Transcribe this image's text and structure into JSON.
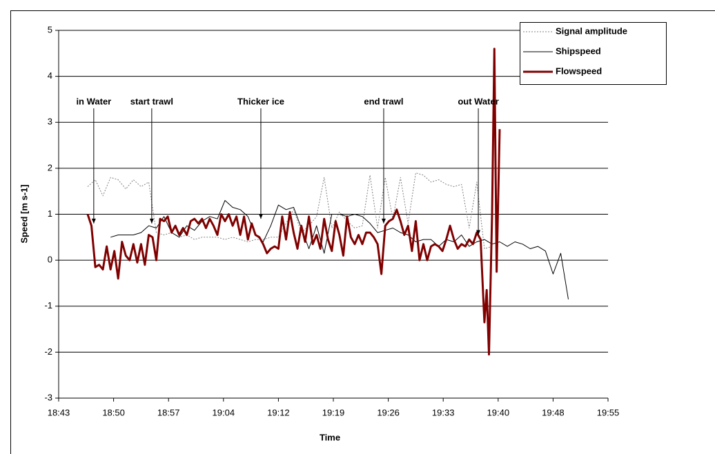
{
  "chart_data": {
    "type": "line",
    "xlabel": "Time",
    "ylabel": "Speed [m s-1]",
    "xlim": [
      1123.2,
      1195.2
    ],
    "xticks": [
      {
        "value": 1123.2,
        "label": "18:43"
      },
      {
        "value": 1130.4,
        "label": "18:50"
      },
      {
        "value": 1137.6,
        "label": "18:57"
      },
      {
        "value": 1144.8,
        "label": "19:04"
      },
      {
        "value": 1152,
        "label": "19:12"
      },
      {
        "value": 1159.2,
        "label": "19:19"
      },
      {
        "value": 1166.4,
        "label": "19:26"
      },
      {
        "value": 1173.6,
        "label": "19:33"
      },
      {
        "value": 1180.8,
        "label": "19:40"
      },
      {
        "value": 1188,
        "label": "19:48"
      },
      {
        "value": 1195.2,
        "label": "19:55"
      }
    ],
    "ylim": [
      -3,
      5
    ],
    "yticks": [
      -3,
      -2,
      -1,
      0,
      1,
      2,
      3,
      4,
      5
    ],
    "grid": true,
    "legend": "top-right",
    "series": [
      {
        "name": "Signal amplitude",
        "color": "#808080",
        "style": "dotted",
        "x": [
          1127,
          1128,
          1129,
          1130,
          1131,
          1132,
          1133,
          1134,
          1135,
          1136,
          1137,
          1138,
          1139,
          1140,
          1141,
          1142,
          1143,
          1144,
          1145,
          1146,
          1147,
          1148,
          1149,
          1150,
          1151,
          1152,
          1153,
          1154,
          1155,
          1156,
          1157,
          1158,
          1159,
          1160,
          1161,
          1162,
          1163,
          1164,
          1165,
          1166,
          1167,
          1168,
          1169,
          1170,
          1171,
          1172,
          1173,
          1174,
          1175,
          1176,
          1177,
          1178,
          1179,
          1180
        ],
        "values": [
          1.6,
          1.75,
          1.4,
          1.8,
          1.75,
          1.55,
          1.75,
          1.6,
          1.7,
          0.6,
          0.55,
          0.6,
          0.5,
          0.55,
          0.45,
          0.5,
          0.5,
          0.5,
          0.45,
          0.5,
          0.45,
          0.4,
          0.45,
          0.45,
          0.5,
          0.5,
          0.8,
          1.1,
          0.6,
          0.75,
          0.95,
          1.8,
          0.7,
          1.05,
          0.85,
          0.7,
          0.75,
          1.85,
          0.7,
          1.8,
          0.9,
          1.8,
          0.8,
          1.9,
          1.85,
          1.7,
          1.75,
          1.65,
          1.6,
          1.65,
          0.7,
          1.7,
          0.25,
          0.3
        ]
      },
      {
        "name": "Shipspeed",
        "color": "#000000",
        "style": "solid",
        "x": [
          1130,
          1131,
          1132,
          1133,
          1134,
          1135,
          1136,
          1137,
          1138,
          1139,
          1140,
          1141,
          1142,
          1143,
          1144,
          1145,
          1146,
          1147,
          1148,
          1149,
          1150,
          1151,
          1152,
          1153,
          1154,
          1155,
          1156,
          1157,
          1158,
          1159,
          1160,
          1161,
          1162,
          1163,
          1164,
          1165,
          1166,
          1167,
          1168,
          1169,
          1170,
          1171,
          1172,
          1173,
          1174,
          1175,
          1176,
          1177,
          1178,
          1179,
          1180,
          1181,
          1182,
          1183,
          1184,
          1185,
          1186,
          1187,
          1188,
          1189,
          1189.5,
          1190
        ],
        "values": [
          0.5,
          0.55,
          0.55,
          0.55,
          0.6,
          0.75,
          0.7,
          0.95,
          0.6,
          0.5,
          0.75,
          0.65,
          0.85,
          0.95,
          0.9,
          1.3,
          1.15,
          1.1,
          0.95,
          0.55,
          0.4,
          0.75,
          1.2,
          1.1,
          1.15,
          0.7,
          0.25,
          0.75,
          0.15,
          1.0,
          1.0,
          0.95,
          1.0,
          0.95,
          0.8,
          0.6,
          0.65,
          0.7,
          0.6,
          0.55,
          0.4,
          0.45,
          0.45,
          0.3,
          0.45,
          0.4,
          0.55,
          0.3,
          0.4,
          0.45,
          0.35,
          0.4,
          0.3,
          0.4,
          0.35,
          0.25,
          0.3,
          0.2,
          -0.3,
          0.15,
          -0.35,
          -0.85
        ]
      },
      {
        "name": "Flowspeed",
        "color": "#800000",
        "style": "thick",
        "x": [
          1127,
          1127.5,
          1128,
          1128.5,
          1129,
          1129.5,
          1130,
          1130.5,
          1131,
          1131.5,
          1132,
          1132.5,
          1133,
          1133.5,
          1134,
          1134.5,
          1135,
          1135.5,
          1136,
          1136.5,
          1137,
          1137.5,
          1138,
          1138.5,
          1139,
          1139.5,
          1140,
          1140.5,
          1141,
          1141.5,
          1142,
          1142.5,
          1143,
          1143.5,
          1144,
          1144.5,
          1145,
          1145.5,
          1146,
          1146.5,
          1147,
          1147.5,
          1148,
          1148.5,
          1149,
          1149.5,
          1150,
          1150.5,
          1151,
          1151.5,
          1152,
          1152.5,
          1153,
          1153.5,
          1154,
          1154.5,
          1155,
          1155.5,
          1156,
          1156.5,
          1157,
          1157.5,
          1158,
          1158.5,
          1159,
          1159.5,
          1160,
          1160.5,
          1161,
          1161.5,
          1162,
          1162.5,
          1163,
          1163.5,
          1164,
          1164.5,
          1165,
          1165.5,
          1166,
          1166.5,
          1167,
          1167.5,
          1168,
          1168.5,
          1169,
          1169.5,
          1170,
          1170.5,
          1171,
          1171.5,
          1172,
          1172.5,
          1173,
          1173.5,
          1174,
          1174.5,
          1175,
          1175.5,
          1176,
          1176.5,
          1177,
          1177.5,
          1178,
          1178.5,
          1179,
          1179.3,
          1179.6,
          1180,
          1180.3,
          1180.6,
          1181
        ],
        "values": [
          1.0,
          0.75,
          -0.15,
          -0.1,
          -0.2,
          0.3,
          -0.2,
          0.2,
          -0.4,
          0.4,
          0.1,
          0.0,
          0.35,
          -0.05,
          0.35,
          -0.1,
          0.55,
          0.5,
          0.0,
          0.9,
          0.85,
          0.95,
          0.6,
          0.75,
          0.55,
          0.7,
          0.55,
          0.85,
          0.9,
          0.8,
          0.9,
          0.7,
          0.9,
          0.75,
          0.55,
          1.0,
          0.85,
          1.0,
          0.75,
          0.95,
          0.55,
          0.95,
          0.45,
          0.8,
          0.55,
          0.5,
          0.35,
          0.15,
          0.25,
          0.3,
          0.25,
          0.95,
          0.45,
          1.05,
          0.6,
          0.25,
          0.75,
          0.4,
          0.95,
          0.35,
          0.55,
          0.25,
          0.9,
          0.45,
          0.2,
          0.85,
          0.55,
          0.1,
          0.95,
          0.5,
          0.35,
          0.55,
          0.35,
          0.6,
          0.6,
          0.5,
          0.35,
          -0.3,
          0.75,
          0.85,
          0.9,
          1.1,
          0.85,
          0.55,
          0.75,
          0.2,
          0.85,
          0.0,
          0.35,
          0.0,
          0.3,
          0.35,
          0.3,
          0.2,
          0.45,
          0.75,
          0.45,
          0.25,
          0.35,
          0.3,
          0.45,
          0.35,
          0.6,
          0.45,
          -1.35,
          -0.65,
          -2.05,
          1.0,
          4.6,
          -0.25,
          2.85
        ]
      }
    ],
    "annotations": [
      {
        "text": "in Water",
        "x": 1127.8,
        "y": 0.8
      },
      {
        "text": "start trawl",
        "x": 1135.4,
        "y": 0.8
      },
      {
        "text": "Thicker ice",
        "x": 1149.7,
        "y": 0.9
      },
      {
        "text": "end trawl",
        "x": 1165.8,
        "y": 0.8
      },
      {
        "text": "out Water",
        "x": 1178.2,
        "y": 0.55
      }
    ]
  }
}
